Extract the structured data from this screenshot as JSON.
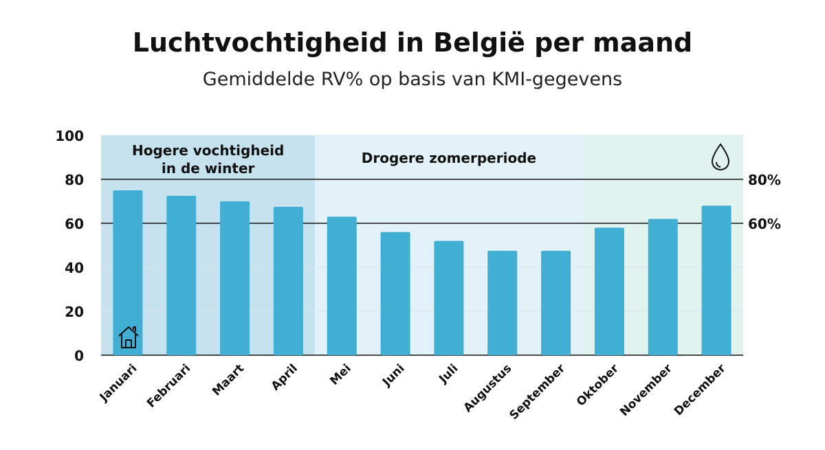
{
  "title": "Luchtvochtigheid in België per maand",
  "subtitle": "Gemiddelde RV% op basis van KMI-gegevens",
  "chart_data": {
    "type": "bar",
    "categories": [
      "Januari",
      "Februari",
      "Maart",
      "April",
      "Mei",
      "Juni",
      "Juli",
      "Augustus",
      "September",
      "Oktober",
      "November",
      "December"
    ],
    "values": [
      75,
      72.5,
      70,
      67.5,
      63,
      56,
      52,
      47.5,
      47.5,
      58,
      62,
      68
    ],
    "ylim": [
      0,
      100
    ],
    "yticks": [
      "0",
      "20",
      "40",
      "60",
      "80",
      "100"
    ],
    "reference_lines": [
      {
        "value": 80,
        "label": "80%"
      },
      {
        "value": 60,
        "label": "60%"
      }
    ],
    "regions": [
      {
        "label_line1": "Hogere vochtigheid",
        "label_line2": "in de winter",
        "from": "Januari",
        "to": "April",
        "color": "#c5e2ee"
      },
      {
        "label_line1": "Drogere zomerperiode",
        "label_line2": "",
        "from": "Mei",
        "to": "September",
        "color": "#e3f2f9"
      },
      {
        "label_line1": "",
        "label_line2": "",
        "from": "Oktober",
        "to": "December",
        "color": "#e0f3ee"
      }
    ],
    "bar_color": "#41aed3",
    "icons": [
      "house-icon",
      "droplet-icon"
    ],
    "grid": true
  }
}
